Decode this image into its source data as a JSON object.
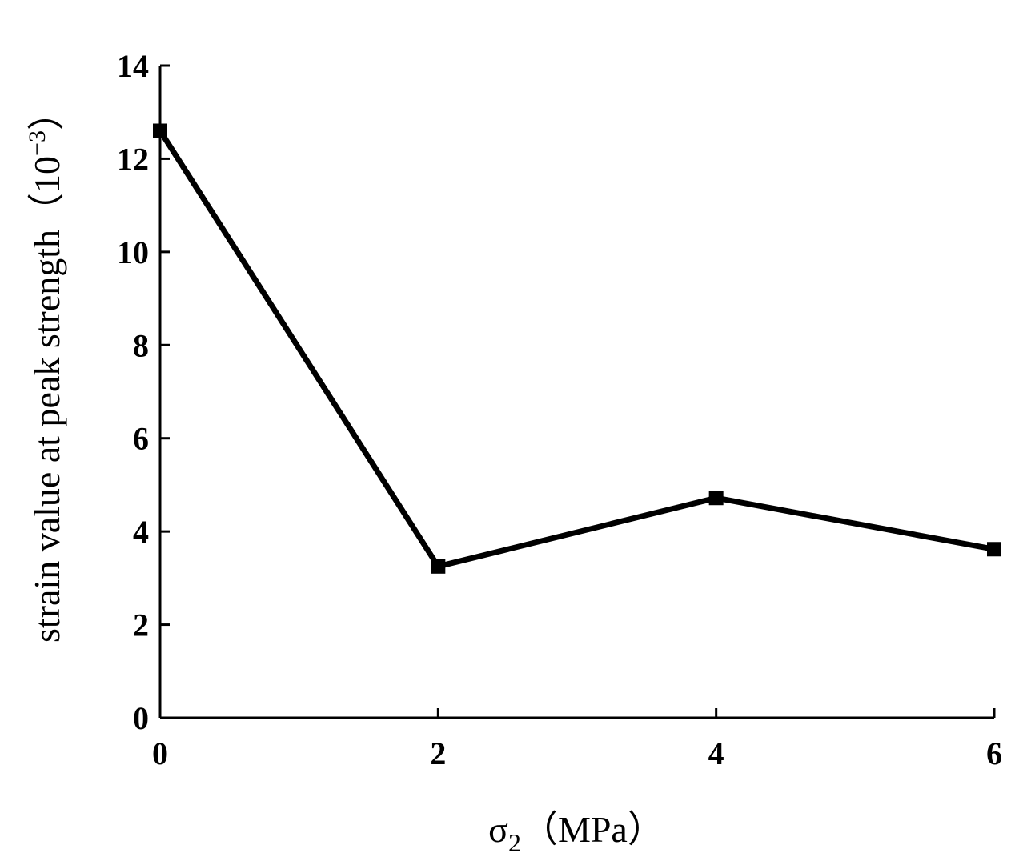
{
  "chart_data": {
    "type": "line",
    "title": "",
    "xlabel": {
      "symbol": "σ",
      "subscript": "2",
      "unit": "（MPa）"
    },
    "ylabel": {
      "text": "strain value at peak strength（10",
      "superscript": "−3",
      "close": "）"
    },
    "xlim": [
      0,
      6
    ],
    "ylim": [
      0,
      14
    ],
    "x_ticks": [
      "0",
      "2",
      "4",
      "6"
    ],
    "y_ticks": [
      "0",
      "2",
      "4",
      "6",
      "8",
      "10",
      "12",
      "14"
    ],
    "series": [
      {
        "x": [
          0,
          2,
          4,
          6
        ],
        "values": [
          12.6,
          3.25,
          4.72,
          3.62
        ]
      }
    ],
    "marker": "square",
    "legend": "none",
    "grid": false,
    "line_color": "#000000"
  }
}
